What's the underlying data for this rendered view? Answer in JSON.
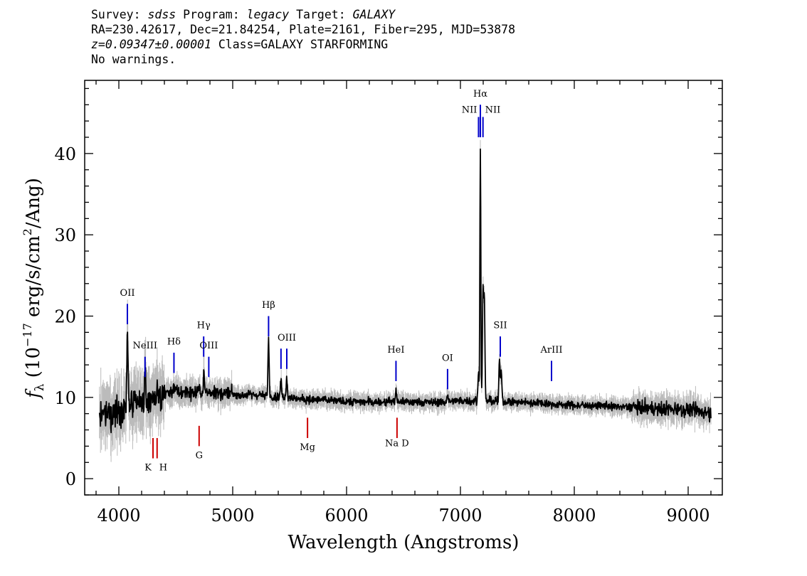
{
  "header": {
    "line1": {
      "survey_label": "Survey: ",
      "survey": "sdss",
      "program_label": " Program: ",
      "program": "legacy",
      "target_label": " Target: ",
      "target": "GALAXY"
    },
    "line2": "RA=230.42617, Dec=21.84254, Plate=2161, Fiber=295, MJD=53878",
    "line3": {
      "redshift": "z=0.09347±0.00001",
      "class": " Class=GALAXY STARFORMING"
    },
    "line4": "No warnings."
  },
  "chart_data": {
    "type": "line",
    "title": "",
    "xlabel": "Wavelength (Angstroms)",
    "ylabel_parts": {
      "f": "f",
      "sub": "λ",
      "pre": " (10",
      "exp1": "−17",
      "mid": " erg/s/cm",
      "exp2": "2",
      "post": "/Ang)"
    },
    "xlim": [
      3700,
      9300
    ],
    "ylim": [
      -2,
      49
    ],
    "xticks": [
      4000,
      5000,
      6000,
      7000,
      8000,
      9000
    ],
    "yticks": [
      0,
      10,
      20,
      30,
      40
    ],
    "grid": false,
    "colors": {
      "flux": "#000000",
      "error": "#bbbbbb",
      "emission": "#0000cc",
      "absorption": "#cc0000"
    },
    "continuum": {
      "x": [
        3830,
        3900,
        4000,
        4100,
        4200,
        4300,
        4400,
        4500,
        4600,
        4700,
        4800,
        4900,
        5000,
        5100,
        5200,
        5300,
        5400,
        5500,
        5600,
        5700,
        5800,
        5900,
        6000,
        6100,
        6200,
        6300,
        6400,
        6500,
        6600,
        6700,
        6800,
        6900,
        7000,
        7100,
        7300,
        7500,
        7700,
        7900,
        8100,
        8300,
        8500,
        8700,
        8900,
        9100,
        9200
      ],
      "y": [
        7.5,
        7.8,
        8.3,
        9.0,
        9.5,
        9.9,
        10.4,
        10.7,
        10.6,
        10.5,
        10.6,
        10.5,
        10.4,
        10.3,
        10.3,
        10.2,
        10.0,
        10.0,
        9.8,
        9.7,
        9.7,
        9.6,
        9.5,
        9.5,
        9.4,
        9.4,
        9.5,
        9.5,
        9.4,
        9.4,
        9.4,
        9.5,
        9.6,
        9.6,
        9.5,
        9.4,
        9.3,
        9.1,
        9.0,
        8.9,
        8.8,
        8.7,
        8.6,
        8.3,
        8.0
      ]
    },
    "emission_peaks": [
      {
        "x": 4076,
        "y": 18.0
      },
      {
        "x": 4231,
        "y": 12.5
      },
      {
        "x": 4480,
        "y": 11.5
      },
      {
        "x": 4747,
        "y": 13.0
      },
      {
        "x": 5315,
        "y": 17.0
      },
      {
        "x": 5424,
        "y": 12.2
      },
      {
        "x": 5474,
        "y": 12.6
      },
      {
        "x": 6435,
        "y": 10.8
      },
      {
        "x": 6888,
        "y": 10.3
      },
      {
        "x": 7159,
        "y": 13.0
      },
      {
        "x": 7175,
        "y": 41.0
      },
      {
        "x": 7198,
        "y": 23.0
      },
      {
        "x": 7210,
        "y": 22.0
      },
      {
        "x": 7343,
        "y": 14.5
      },
      {
        "x": 7359,
        "y": 13.5
      }
    ],
    "line_markers": [
      {
        "label": "OII",
        "x": 4075,
        "color": "emission",
        "top": 21.5,
        "bottom": 19.0,
        "label_y": 22.5
      },
      {
        "label": "NeIII",
        "x": 4230,
        "color": "emission",
        "top": 15.0,
        "bottom": 12.5,
        "label_y": 16.0
      },
      {
        "label": "Hδ",
        "x": 4484,
        "color": "emission",
        "top": 15.5,
        "bottom": 13.0,
        "label_y": 16.5
      },
      {
        "label": "Hγ",
        "x": 4745,
        "color": "emission",
        "top": 17.5,
        "bottom": 15.0,
        "label_y": 18.5
      },
      {
        "label": "OIII",
        "x": 4790,
        "color": "emission",
        "top": 15.0,
        "bottom": 12.5,
        "label_y": 16.0
      },
      {
        "label": "Hβ",
        "x": 5315,
        "color": "emission",
        "top": 20.0,
        "bottom": 17.5,
        "label_y": 21.0
      },
      {
        "label": "OIII",
        "x": 5424,
        "color": "emission",
        "top": 16.0,
        "bottom": 13.5,
        "label_y": 17.0,
        "no_label": true
      },
      {
        "label": "OIII",
        "x": 5475,
        "color": "emission",
        "top": 16.0,
        "bottom": 13.5,
        "label_y": 17.0
      },
      {
        "label": "HeI",
        "x": 6434,
        "color": "emission",
        "top": 14.5,
        "bottom": 12.0,
        "label_y": 15.5
      },
      {
        "label": "OI",
        "x": 6887,
        "color": "emission",
        "top": 13.5,
        "bottom": 11.0,
        "label_y": 14.5
      },
      {
        "label": "NII",
        "x": 7159,
        "color": "emission",
        "top": 44.5,
        "bottom": 42.0,
        "label_y": 45.0,
        "anchor": "end"
      },
      {
        "label": "Hα",
        "x": 7175,
        "color": "emission",
        "top": 46.0,
        "bottom": 42.0,
        "label_y": 47.0
      },
      {
        "label": "NII",
        "x": 7198,
        "color": "emission",
        "top": 44.5,
        "bottom": 42.0,
        "label_y": 45.0,
        "anchor": "start"
      },
      {
        "label": "SII",
        "x": 7350,
        "color": "emission",
        "top": 17.5,
        "bottom": 15.0,
        "label_y": 18.5
      },
      {
        "label": "ArIII",
        "x": 7800,
        "color": "emission",
        "top": 14.5,
        "bottom": 12.0,
        "label_y": 15.5
      },
      {
        "label": "K",
        "x": 4300,
        "color": "absorption",
        "top": 5.0,
        "bottom": 2.5,
        "label_y": 1.0,
        "anchor": "end"
      },
      {
        "label": "H",
        "x": 4336,
        "color": "absorption",
        "top": 5.0,
        "bottom": 2.5,
        "label_y": 1.0,
        "anchor": "start"
      },
      {
        "label": "G",
        "x": 4705,
        "color": "absorption",
        "top": 6.5,
        "bottom": 4.0,
        "label_y": 2.5
      },
      {
        "label": "Mg",
        "x": 5657,
        "color": "absorption",
        "top": 7.5,
        "bottom": 5.0,
        "label_y": 3.5
      },
      {
        "label": "Na  D",
        "x": 6443,
        "color": "absorption",
        "top": 7.5,
        "bottom": 5.0,
        "label_y": 4.0
      }
    ]
  }
}
